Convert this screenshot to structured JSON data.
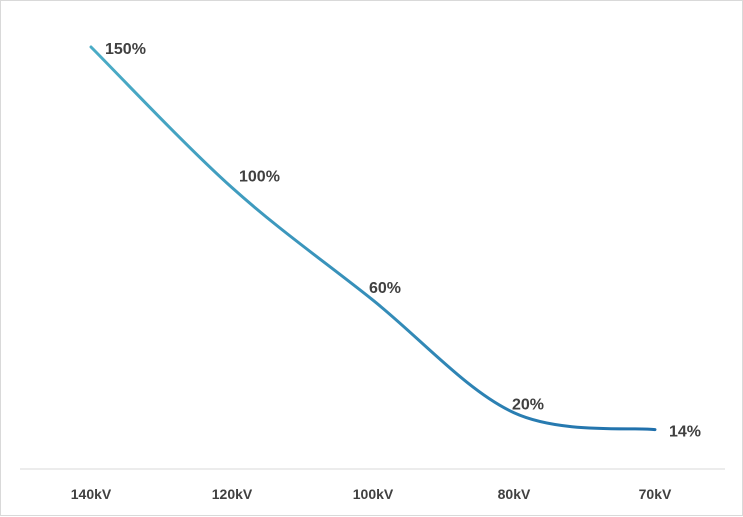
{
  "chart_data": {
    "type": "line",
    "title": "",
    "xlabel": "",
    "ylabel": "",
    "categories": [
      "140kV",
      "120kV",
      "100kV",
      "80kV",
      "70kV"
    ],
    "series": [
      {
        "values": [
          150,
          100,
          60,
          20,
          14
        ],
        "labels": [
          "150%",
          "100%",
          "60%",
          "20%",
          "14%"
        ]
      }
    ],
    "ylim": [
      0,
      160
    ],
    "grid": false,
    "legend": "none",
    "line_color_start": "#4bacc6",
    "line_color_end": "#1f6fab"
  }
}
